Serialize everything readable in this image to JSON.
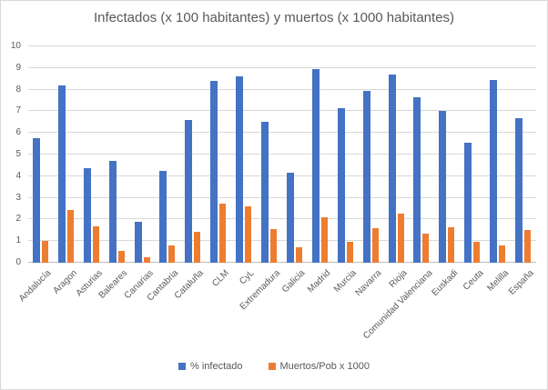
{
  "window": {
    "background": "#ffffff",
    "border_color": "#d9d9d9",
    "text_color": "#595959"
  },
  "chart_data": {
    "type": "bar",
    "title": "Infectados (x 100 habitantes) y muertos (x 1000 habitantes)",
    "categories": [
      "Andalucía",
      "Aragon",
      "Asturias",
      "Baleares",
      "Canarias",
      "Cantabria",
      "Cataluña",
      "CLM",
      "CyL",
      "Extremadura",
      "Galicia",
      "Madrid",
      "Murcia",
      "Navarra",
      "Rioja",
      "Comunidad Valenciana",
      "Euskadi",
      "Ceuta",
      "Melilla",
      "España"
    ],
    "series": [
      {
        "name": "% infectado",
        "color": "#4472C4",
        "values": [
          5.75,
          8.2,
          4.35,
          4.7,
          1.9,
          4.25,
          6.6,
          8.4,
          8.6,
          6.5,
          4.15,
          8.95,
          7.15,
          7.95,
          8.7,
          7.65,
          7.0,
          5.55,
          8.45,
          6.7
        ]
      },
      {
        "name": "Muertos/Pob x 1000",
        "color": "#ED7D31",
        "values": [
          1.0,
          2.45,
          1.7,
          0.55,
          0.25,
          0.8,
          1.45,
          2.75,
          2.6,
          1.55,
          0.7,
          2.1,
          0.95,
          1.6,
          2.25,
          1.35,
          1.65,
          0.95,
          0.8,
          1.5
        ]
      }
    ],
    "xlabel": "",
    "ylabel": "",
    "ylim": [
      0,
      10
    ],
    "ytick_step": 1,
    "grid": true,
    "gridline_color": "#d9d9d9",
    "axisline_color": "#bfbfbf",
    "legend_position": "bottom"
  }
}
